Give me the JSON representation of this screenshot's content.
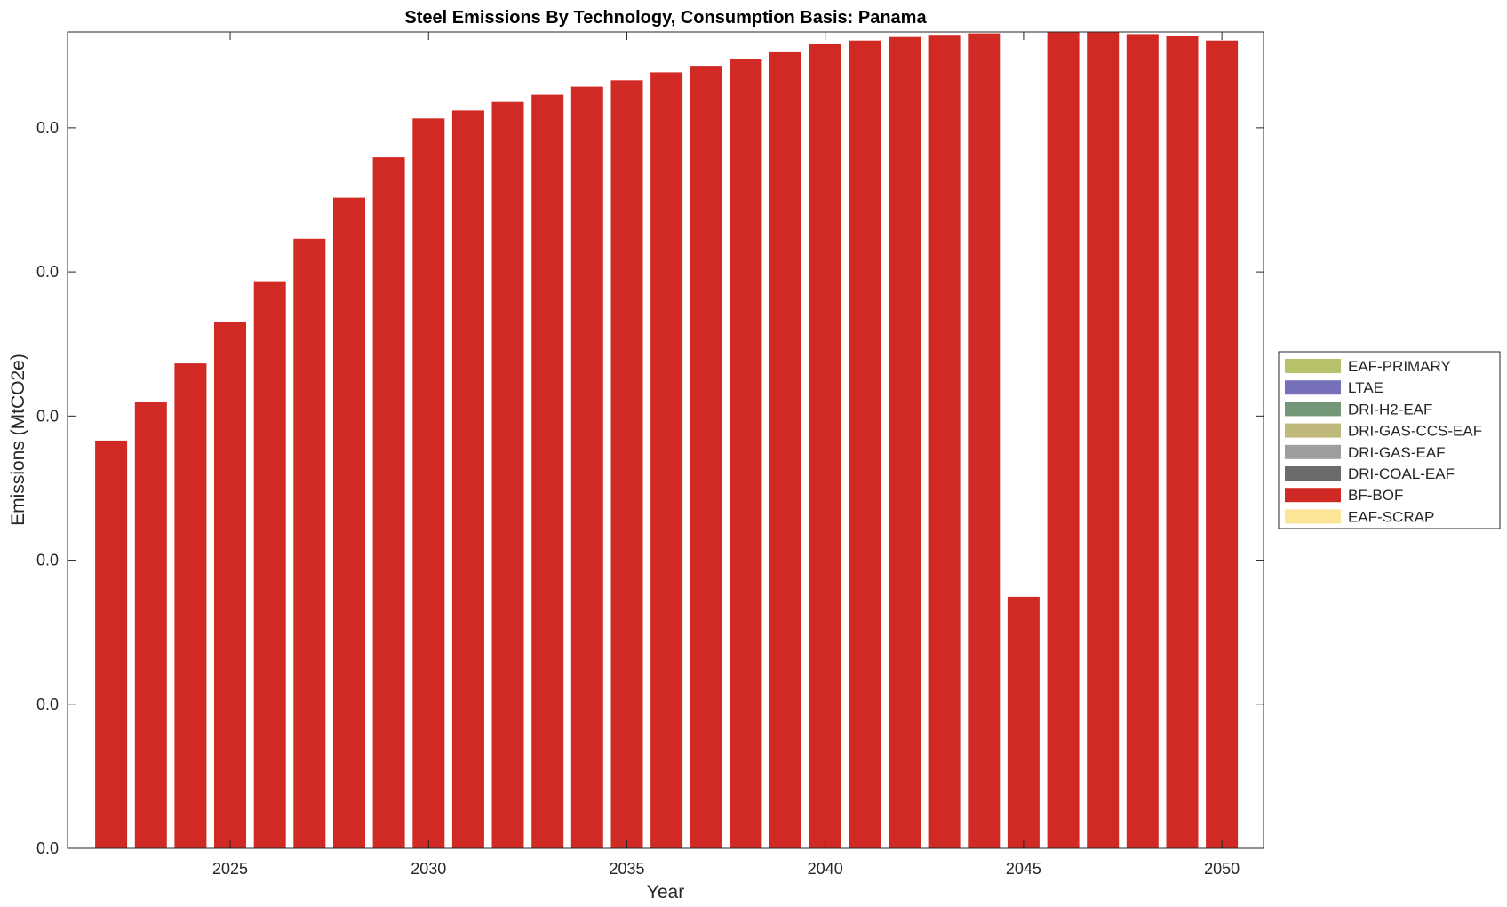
{
  "chart_data": {
    "type": "bar",
    "stacked": true,
    "title": "Steel Emissions By Technology, Consumption Basis: Panama",
    "xlabel": "Year",
    "ylabel": "Emissions (MtCO2e)",
    "x": [
      2022,
      2023,
      2024,
      2025,
      2026,
      2027,
      2028,
      2029,
      2030,
      2031,
      2032,
      2033,
      2034,
      2035,
      2036,
      2037,
      2038,
      2039,
      2040,
      2041,
      2042,
      2043,
      2044,
      2045,
      2046,
      2047,
      2048,
      2049,
      2050
    ],
    "xlim": [
      2020.9,
      2051.05
    ],
    "xticks": [
      2025,
      2030,
      2035,
      2040,
      2045,
      2050
    ],
    "ylim": [
      0,
      1.133
    ],
    "yticks": [
      0,
      0.2,
      0.4,
      0.6,
      0.8,
      1.0
    ],
    "ytick_labels": [
      "0.0",
      "0.0",
      "0.0",
      "0.0",
      "0.0",
      "0.0"
    ],
    "grid": false,
    "legend_position": "right",
    "series": [
      {
        "name": "EAF-PRIMARY",
        "color": "#b8c26a",
        "values": [
          0,
          0,
          0,
          0,
          0,
          0,
          0,
          0,
          0,
          0,
          0,
          0,
          0,
          0,
          0,
          0,
          0,
          0,
          0,
          0,
          0,
          0,
          0,
          0,
          0,
          0,
          0,
          0,
          0
        ]
      },
      {
        "name": "LTAE",
        "color": "#7570b8",
        "values": [
          0,
          0,
          0,
          0,
          0,
          0,
          0,
          0,
          0,
          0,
          0,
          0,
          0,
          0,
          0,
          0,
          0,
          0,
          0,
          0,
          0,
          0,
          0,
          0,
          0,
          0,
          0,
          0,
          0
        ]
      },
      {
        "name": "DRI-H2-EAF",
        "color": "#74977a",
        "values": [
          0,
          0,
          0,
          0,
          0,
          0,
          0,
          0,
          0,
          0,
          0,
          0,
          0,
          0,
          0,
          0,
          0,
          0,
          0,
          0,
          0,
          0,
          0,
          0,
          0,
          0,
          0,
          0,
          0
        ]
      },
      {
        "name": "DRI-GAS-CCS-EAF",
        "color": "#bfb97b",
        "values": [
          0,
          0,
          0,
          0,
          0,
          0,
          0,
          0,
          0,
          0,
          0,
          0,
          0,
          0,
          0,
          0,
          0,
          0,
          0,
          0,
          0,
          0,
          0,
          0,
          0,
          0,
          0,
          0,
          0
        ]
      },
      {
        "name": "DRI-GAS-EAF",
        "color": "#9e9e9e",
        "values": [
          0,
          0,
          0,
          0,
          0,
          0,
          0,
          0,
          0,
          0,
          0,
          0,
          0,
          0,
          0,
          0,
          0,
          0,
          0,
          0,
          0,
          0,
          0,
          0,
          0,
          0,
          0,
          0,
          0
        ]
      },
      {
        "name": "DRI-COAL-EAF",
        "color": "#6b6b6b",
        "values": [
          0,
          0,
          0,
          0,
          0,
          0,
          0,
          0,
          0,
          0,
          0,
          0,
          0,
          0,
          0,
          0,
          0,
          0,
          0,
          0,
          0,
          0,
          0,
          0,
          0,
          0,
          0,
          0,
          0
        ]
      },
      {
        "name": "BF-BOF",
        "color": "#d12a24",
        "values": [
          0.566,
          0.619,
          0.673,
          0.73,
          0.787,
          0.846,
          0.903,
          0.959,
          1.013,
          1.024,
          1.036,
          1.046,
          1.057,
          1.066,
          1.077,
          1.086,
          1.096,
          1.106,
          1.116,
          1.121,
          1.126,
          1.129,
          1.131,
          0.349,
          1.133,
          1.133,
          1.13,
          1.127,
          1.121
        ]
      },
      {
        "name": "EAF-SCRAP",
        "color": "#fde497",
        "values": [
          0,
          0,
          0,
          0,
          0,
          0,
          0,
          0,
          0,
          0,
          0,
          0,
          0,
          0,
          0,
          0,
          0,
          0,
          0,
          0,
          0,
          0,
          0,
          0,
          0,
          0,
          0,
          0,
          0
        ]
      }
    ]
  }
}
